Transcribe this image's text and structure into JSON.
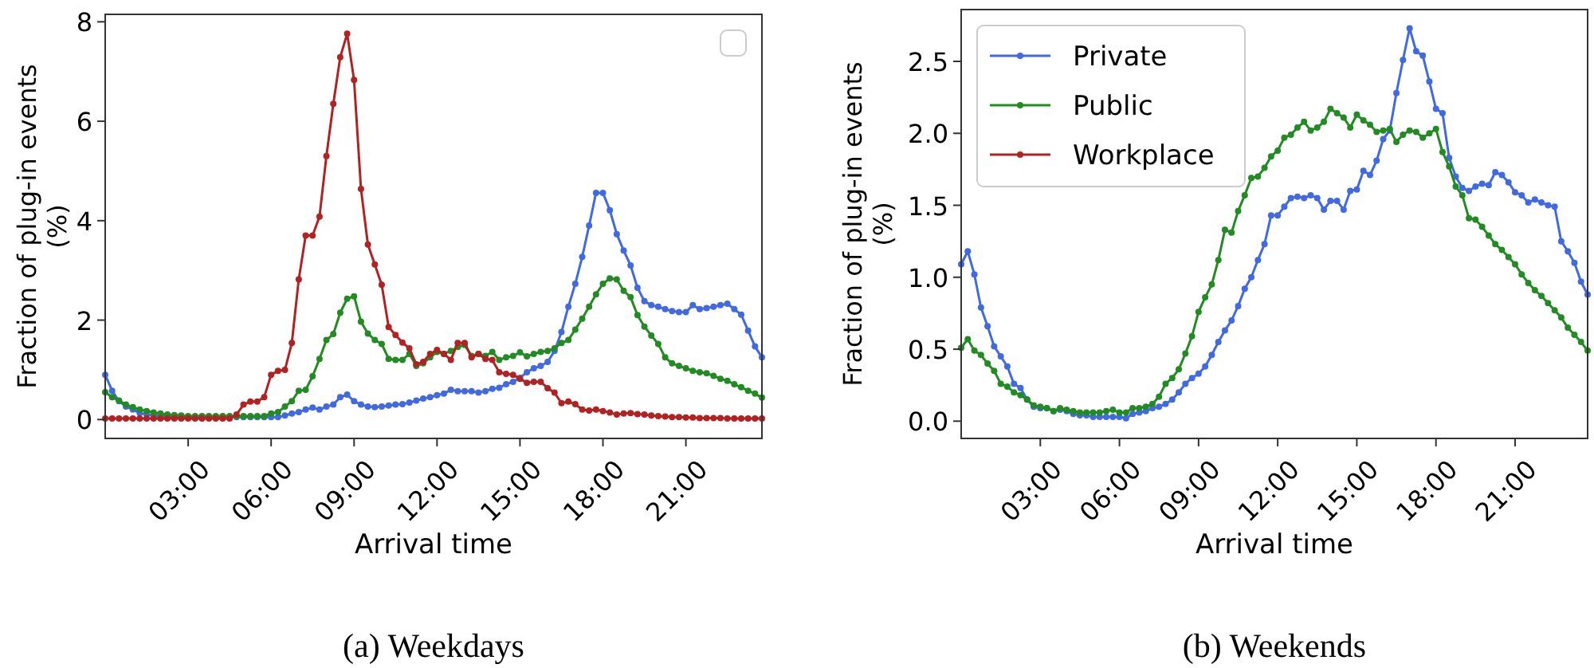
{
  "chart_data": [
    {
      "type": "line",
      "title": "(a) Weekdays",
      "xlabel": "Arrival time",
      "ylabel": "Fraction of plug-in events (%)",
      "marker": "circle",
      "legend": "top right",
      "grid": false,
      "x": [
        0,
        0.25,
        0.5,
        0.75,
        1,
        1.25,
        1.5,
        1.75,
        2,
        2.25,
        2.5,
        2.75,
        3,
        3.25,
        3.5,
        3.75,
        4,
        4.25,
        4.5,
        4.75,
        5,
        5.25,
        5.5,
        5.75,
        6,
        6.25,
        6.5,
        6.75,
        7,
        7.25,
        7.5,
        7.75,
        8,
        8.25,
        8.5,
        8.75,
        9,
        9.25,
        9.5,
        9.75,
        10,
        10.25,
        10.5,
        10.75,
        11,
        11.25,
        11.5,
        11.75,
        12,
        12.25,
        12.5,
        12.75,
        13,
        13.25,
        13.5,
        13.75,
        14,
        14.25,
        14.5,
        14.75,
        15,
        15.25,
        15.5,
        15.75,
        16,
        16.25,
        16.5,
        16.75,
        17,
        17.25,
        17.5,
        17.75,
        18,
        18.25,
        18.5,
        18.75,
        19,
        19.25,
        19.5,
        19.75,
        20,
        20.25,
        20.5,
        20.75,
        21,
        21.25,
        21.5,
        21.75,
        22,
        22.25,
        22.5,
        22.75,
        23,
        23.25,
        23.5,
        23.75
      ],
      "xlim": [
        0,
        23.75
      ],
      "xticks": [
        {
          "value": 3,
          "label": "03:00"
        },
        {
          "value": 6,
          "label": "06:00"
        },
        {
          "value": 9,
          "label": "09:00"
        },
        {
          "value": 12,
          "label": "12:00"
        },
        {
          "value": 15,
          "label": "15:00"
        },
        {
          "value": 18,
          "label": "18:00"
        },
        {
          "value": 21,
          "label": "21:00"
        }
      ],
      "ylim": [
        -0.38,
        8.15
      ],
      "yticks": [
        0,
        2,
        4,
        6,
        8
      ],
      "series": [
        {
          "color": "#4169e1",
          "values": [
            0.9,
            0.58,
            0.37,
            0.26,
            0.2,
            0.13,
            0.1,
            0.08,
            0.07,
            0.06,
            0.05,
            0.05,
            0.05,
            0.05,
            0.05,
            0.05,
            0.05,
            0.05,
            0.05,
            0.05,
            0.05,
            0.05,
            0.05,
            0.05,
            0.05,
            0.05,
            0.08,
            0.12,
            0.15,
            0.2,
            0.24,
            0.2,
            0.26,
            0.3,
            0.45,
            0.5,
            0.37,
            0.3,
            0.26,
            0.25,
            0.26,
            0.28,
            0.3,
            0.31,
            0.34,
            0.38,
            0.42,
            0.45,
            0.49,
            0.52,
            0.6,
            0.57,
            0.57,
            0.57,
            0.54,
            0.57,
            0.62,
            0.64,
            0.71,
            0.76,
            0.84,
            0.95,
            1.03,
            1.08,
            1.16,
            1.38,
            1.76,
            2.27,
            2.73,
            3.27,
            3.9,
            4.56,
            4.56,
            4.21,
            3.73,
            3.4,
            3.1,
            2.65,
            2.38,
            2.3,
            2.27,
            2.22,
            2.18,
            2.16,
            2.16,
            2.3,
            2.22,
            2.24,
            2.27,
            2.3,
            2.33,
            2.22,
            2.11,
            1.79,
            1.47,
            1.25
          ]
        },
        {
          "color": "#228b22",
          "values": [
            0.55,
            0.45,
            0.38,
            0.3,
            0.25,
            0.2,
            0.17,
            0.14,
            0.12,
            0.1,
            0.09,
            0.08,
            0.07,
            0.07,
            0.07,
            0.07,
            0.07,
            0.07,
            0.07,
            0.07,
            0.07,
            0.07,
            0.07,
            0.07,
            0.12,
            0.15,
            0.26,
            0.37,
            0.58,
            0.6,
            0.87,
            1.22,
            1.6,
            1.72,
            2.15,
            2.43,
            2.48,
            1.97,
            1.73,
            1.6,
            1.52,
            1.22,
            1.2,
            1.2,
            1.32,
            1.08,
            1.13,
            1.25,
            1.36,
            1.32,
            1.38,
            1.46,
            1.5,
            1.28,
            1.32,
            1.28,
            1.36,
            1.2,
            1.25,
            1.28,
            1.35,
            1.27,
            1.32,
            1.36,
            1.38,
            1.43,
            1.54,
            1.6,
            1.81,
            2.03,
            2.27,
            2.52,
            2.73,
            2.84,
            2.82,
            2.59,
            2.46,
            2.1,
            1.87,
            1.69,
            1.52,
            1.25,
            1.13,
            1.08,
            1.03,
            0.98,
            0.95,
            0.93,
            0.88,
            0.82,
            0.78,
            0.71,
            0.65,
            0.58,
            0.52,
            0.44
          ]
        },
        {
          "color": "#b22222",
          "values": [
            0.02,
            0.02,
            0.02,
            0.02,
            0.02,
            0.02,
            0.02,
            0.02,
            0.02,
            0.02,
            0.02,
            0.02,
            0.02,
            0.02,
            0.02,
            0.02,
            0.02,
            0.02,
            0.02,
            0.1,
            0.3,
            0.36,
            0.36,
            0.45,
            0.9,
            0.98,
            1.0,
            1.54,
            2.82,
            3.7,
            3.7,
            4.08,
            5.3,
            6.35,
            7.29,
            7.76,
            6.83,
            4.64,
            3.52,
            3.12,
            2.71,
            1.86,
            1.7,
            1.55,
            1.43,
            1.11,
            1.16,
            1.32,
            1.4,
            1.32,
            1.2,
            1.54,
            1.54,
            1.25,
            1.32,
            1.22,
            1.2,
            0.95,
            0.92,
            0.9,
            0.82,
            0.74,
            0.76,
            0.76,
            0.63,
            0.54,
            0.33,
            0.36,
            0.31,
            0.2,
            0.18,
            0.2,
            0.17,
            0.14,
            0.1,
            0.12,
            0.13,
            0.11,
            0.1,
            0.08,
            0.07,
            0.06,
            0.05,
            0.05,
            0.04,
            0.04,
            0.03,
            0.03,
            0.03,
            0.03,
            0.02,
            0.02,
            0.02,
            0.02,
            0.02,
            0.02
          ]
        }
      ]
    },
    {
      "type": "line",
      "title": "(b) Weekends",
      "xlabel": "Arrival time",
      "ylabel": "Fraction of plug-in events (%)",
      "marker": "circle",
      "legend": "top left",
      "grid": false,
      "x": [
        0,
        0.25,
        0.5,
        0.75,
        1,
        1.25,
        1.5,
        1.75,
        2,
        2.25,
        2.5,
        2.75,
        3,
        3.25,
        3.5,
        3.75,
        4,
        4.25,
        4.5,
        4.75,
        5,
        5.25,
        5.5,
        5.75,
        6,
        6.25,
        6.5,
        6.75,
        7,
        7.25,
        7.5,
        7.75,
        8,
        8.25,
        8.5,
        8.75,
        9,
        9.25,
        9.5,
        9.75,
        10,
        10.25,
        10.5,
        10.75,
        11,
        11.25,
        11.5,
        11.75,
        12,
        12.25,
        12.5,
        12.75,
        13,
        13.25,
        13.5,
        13.75,
        14,
        14.25,
        14.5,
        14.75,
        15,
        15.25,
        15.5,
        15.75,
        16,
        16.25,
        16.5,
        16.75,
        17,
        17.25,
        17.5,
        17.75,
        18,
        18.25,
        18.5,
        18.75,
        19,
        19.25,
        19.5,
        19.75,
        20,
        20.25,
        20.5,
        20.75,
        21,
        21.25,
        21.5,
        21.75,
        22,
        22.25,
        22.5,
        22.75,
        23,
        23.25,
        23.5,
        23.75
      ],
      "xlim": [
        0,
        23.75
      ],
      "xticks": [
        {
          "value": 3,
          "label": "03:00"
        },
        {
          "value": 6,
          "label": "06:00"
        },
        {
          "value": 9,
          "label": "09:00"
        },
        {
          "value": 12,
          "label": "12:00"
        },
        {
          "value": 15,
          "label": "15:00"
        },
        {
          "value": 18,
          "label": "18:00"
        },
        {
          "value": 21,
          "label": "21:00"
        }
      ],
      "ylim": [
        -0.12,
        2.86
      ],
      "yticks": [
        {
          "value": 0,
          "label": "0.0"
        },
        {
          "value": 0.5,
          "label": "0.5"
        },
        {
          "value": 1,
          "label": "1.0"
        },
        {
          "value": 1.5,
          "label": "1.5"
        },
        {
          "value": 2,
          "label": "2.0"
        },
        {
          "value": 2.5,
          "label": "2.5"
        }
      ],
      "series": [
        {
          "name": "Private",
          "color": "#4169e1",
          "values": [
            1.09,
            1.18,
            1.02,
            0.79,
            0.66,
            0.52,
            0.45,
            0.38,
            0.26,
            0.23,
            0.15,
            0.1,
            0.09,
            0.09,
            0.07,
            0.08,
            0.07,
            0.05,
            0.04,
            0.04,
            0.03,
            0.03,
            0.03,
            0.03,
            0.03,
            0.02,
            0.05,
            0.06,
            0.07,
            0.09,
            0.1,
            0.12,
            0.15,
            0.2,
            0.26,
            0.3,
            0.33,
            0.38,
            0.46,
            0.55,
            0.63,
            0.7,
            0.8,
            0.92,
            1.0,
            1.12,
            1.23,
            1.43,
            1.43,
            1.49,
            1.55,
            1.56,
            1.55,
            1.57,
            1.55,
            1.47,
            1.53,
            1.53,
            1.47,
            1.6,
            1.61,
            1.74,
            1.71,
            1.81,
            1.96,
            2.02,
            2.28,
            2.51,
            2.73,
            2.57,
            2.54,
            2.36,
            2.17,
            2.14,
            1.83,
            1.7,
            1.62,
            1.6,
            1.63,
            1.65,
            1.64,
            1.73,
            1.71,
            1.66,
            1.59,
            1.57,
            1.52,
            1.54,
            1.52,
            1.5,
            1.49,
            1.25,
            1.18,
            1.1,
            0.97,
            0.88
          ]
        },
        {
          "name": "Public",
          "color": "#228b22",
          "values": [
            0.51,
            0.57,
            0.49,
            0.46,
            0.4,
            0.35,
            0.26,
            0.24,
            0.2,
            0.18,
            0.15,
            0.11,
            0.1,
            0.09,
            0.07,
            0.09,
            0.08,
            0.07,
            0.06,
            0.06,
            0.06,
            0.06,
            0.07,
            0.08,
            0.06,
            0.06,
            0.09,
            0.09,
            0.1,
            0.12,
            0.17,
            0.26,
            0.3,
            0.36,
            0.47,
            0.59,
            0.76,
            0.86,
            0.95,
            1.12,
            1.33,
            1.31,
            1.46,
            1.57,
            1.69,
            1.7,
            1.76,
            1.84,
            1.88,
            1.97,
            1.99,
            2.04,
            2.08,
            2.02,
            2.04,
            2.08,
            2.17,
            2.14,
            2.11,
            2.04,
            2.13,
            2.09,
            2.06,
            2.01,
            2.02,
            2.03,
            1.94,
            1.99,
            2.02,
            2.01,
            1.97,
            2.0,
            2.03,
            1.87,
            1.77,
            1.63,
            1.57,
            1.41,
            1.4,
            1.35,
            1.29,
            1.23,
            1.19,
            1.14,
            1.09,
            1.02,
            0.96,
            0.91,
            0.87,
            0.82,
            0.77,
            0.72,
            0.65,
            0.6,
            0.55,
            0.49
          ]
        },
        {
          "name": "Workplace",
          "color": "#b22222",
          "values": [
            null,
            null,
            null,
            null,
            null,
            null,
            null,
            null,
            null,
            null,
            null,
            null,
            null,
            null,
            null,
            null,
            null,
            null,
            null,
            null,
            null,
            null,
            null,
            null,
            null,
            null,
            null,
            null,
            null,
            null,
            null,
            null,
            null,
            null,
            null,
            null,
            null,
            null,
            null,
            null,
            null,
            null,
            null,
            null,
            null,
            null,
            null,
            null,
            null,
            null,
            null,
            null,
            null,
            null,
            null,
            null,
            null,
            null,
            null,
            null,
            null,
            null,
            null,
            null,
            null,
            null,
            null,
            null,
            null,
            null,
            null,
            null,
            null,
            null,
            null,
            null,
            null,
            null,
            null,
            null,
            null,
            null,
            null,
            null,
            null,
            null,
            null,
            null,
            null,
            null,
            null,
            null,
            null,
            null,
            null,
            null
          ]
        }
      ]
    }
  ]
}
